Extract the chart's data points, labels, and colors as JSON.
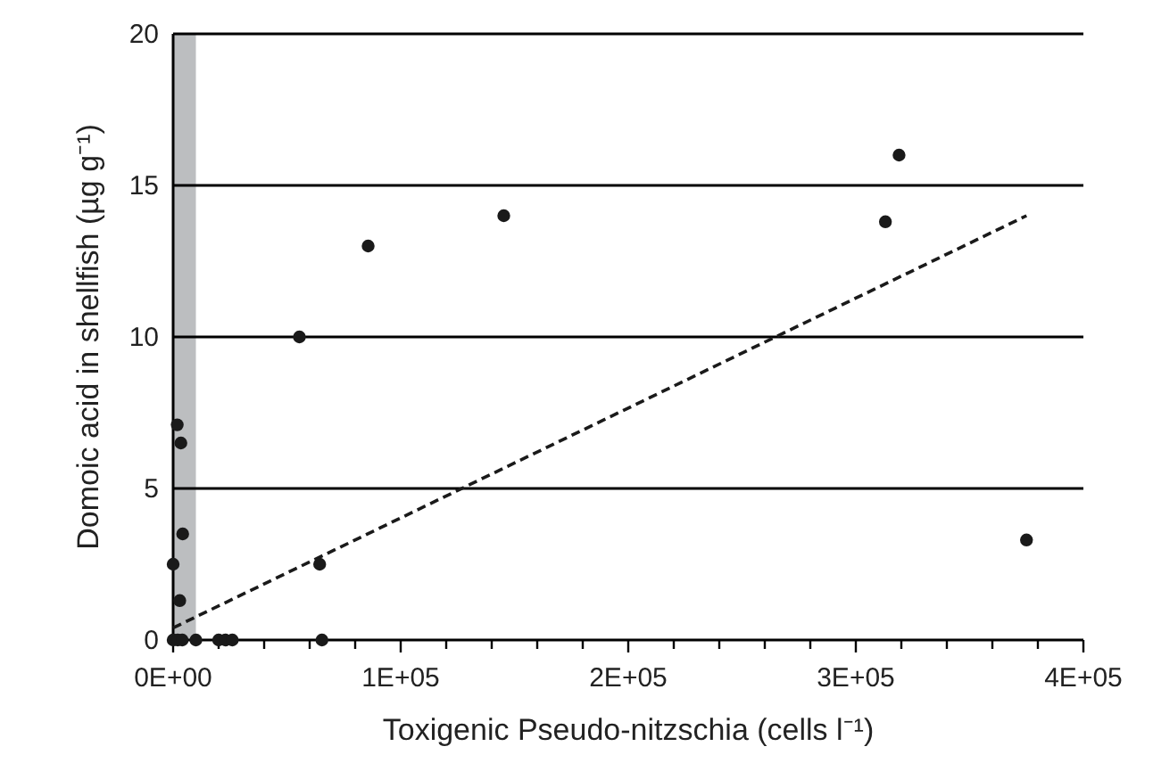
{
  "chart_data": {
    "type": "scatter",
    "xlabel": "Toxigenic Pseudo-nitzschia (cells l⁻¹)",
    "ylabel": "Domoic acid in shellfish  (µg g⁻¹)",
    "xlim": [
      0,
      400000
    ],
    "ylim": [
      0,
      20
    ],
    "xticks": [
      {
        "value": 0,
        "label": "0E+00"
      },
      {
        "value": 20000,
        "label": null
      },
      {
        "value": 40000,
        "label": null
      },
      {
        "value": 60000,
        "label": null
      },
      {
        "value": 80000,
        "label": null
      },
      {
        "value": 100000,
        "label": "1E+05"
      },
      {
        "value": 120000,
        "label": null
      },
      {
        "value": 140000,
        "label": null
      },
      {
        "value": 160000,
        "label": null
      },
      {
        "value": 180000,
        "label": null
      },
      {
        "value": 200000,
        "label": "2E+05"
      },
      {
        "value": 220000,
        "label": null
      },
      {
        "value": 240000,
        "label": null
      },
      {
        "value": 260000,
        "label": null
      },
      {
        "value": 280000,
        "label": null
      },
      {
        "value": 300000,
        "label": "3E+05"
      },
      {
        "value": 320000,
        "label": null
      },
      {
        "value": 340000,
        "label": null
      },
      {
        "value": 360000,
        "label": null
      },
      {
        "value": 380000,
        "label": null
      },
      {
        "value": 400000,
        "label": "4E+05"
      }
    ],
    "yticks": [
      0,
      5,
      10,
      15,
      20
    ],
    "grid": "y",
    "marker": "circle",
    "bands": [
      {
        "axis": "x",
        "from": 0,
        "to": 10000,
        "color": "#bcbec0"
      }
    ],
    "series": [
      {
        "color": "#1a1a1a",
        "x": [
          1800,
          3400,
          4200,
          0,
          2900,
          0,
          2000,
          4000,
          10000,
          20000,
          23000,
          26000,
          55500,
          64400,
          65400,
          85700,
          145300,
          313000,
          319000,
          375000
        ],
        "values": [
          7.1,
          6.5,
          3.5,
          2.5,
          1.3,
          0,
          0,
          0,
          0,
          0,
          0,
          0,
          10,
          2.5,
          0,
          13,
          14,
          13.8,
          16,
          3.3
        ]
      },
      {
        "type": "line",
        "color": "#1a1a1a",
        "line_style": "dashed",
        "marker": "none",
        "x": [
          0,
          375000
        ],
        "values": [
          0.4,
          14
        ]
      }
    ]
  }
}
